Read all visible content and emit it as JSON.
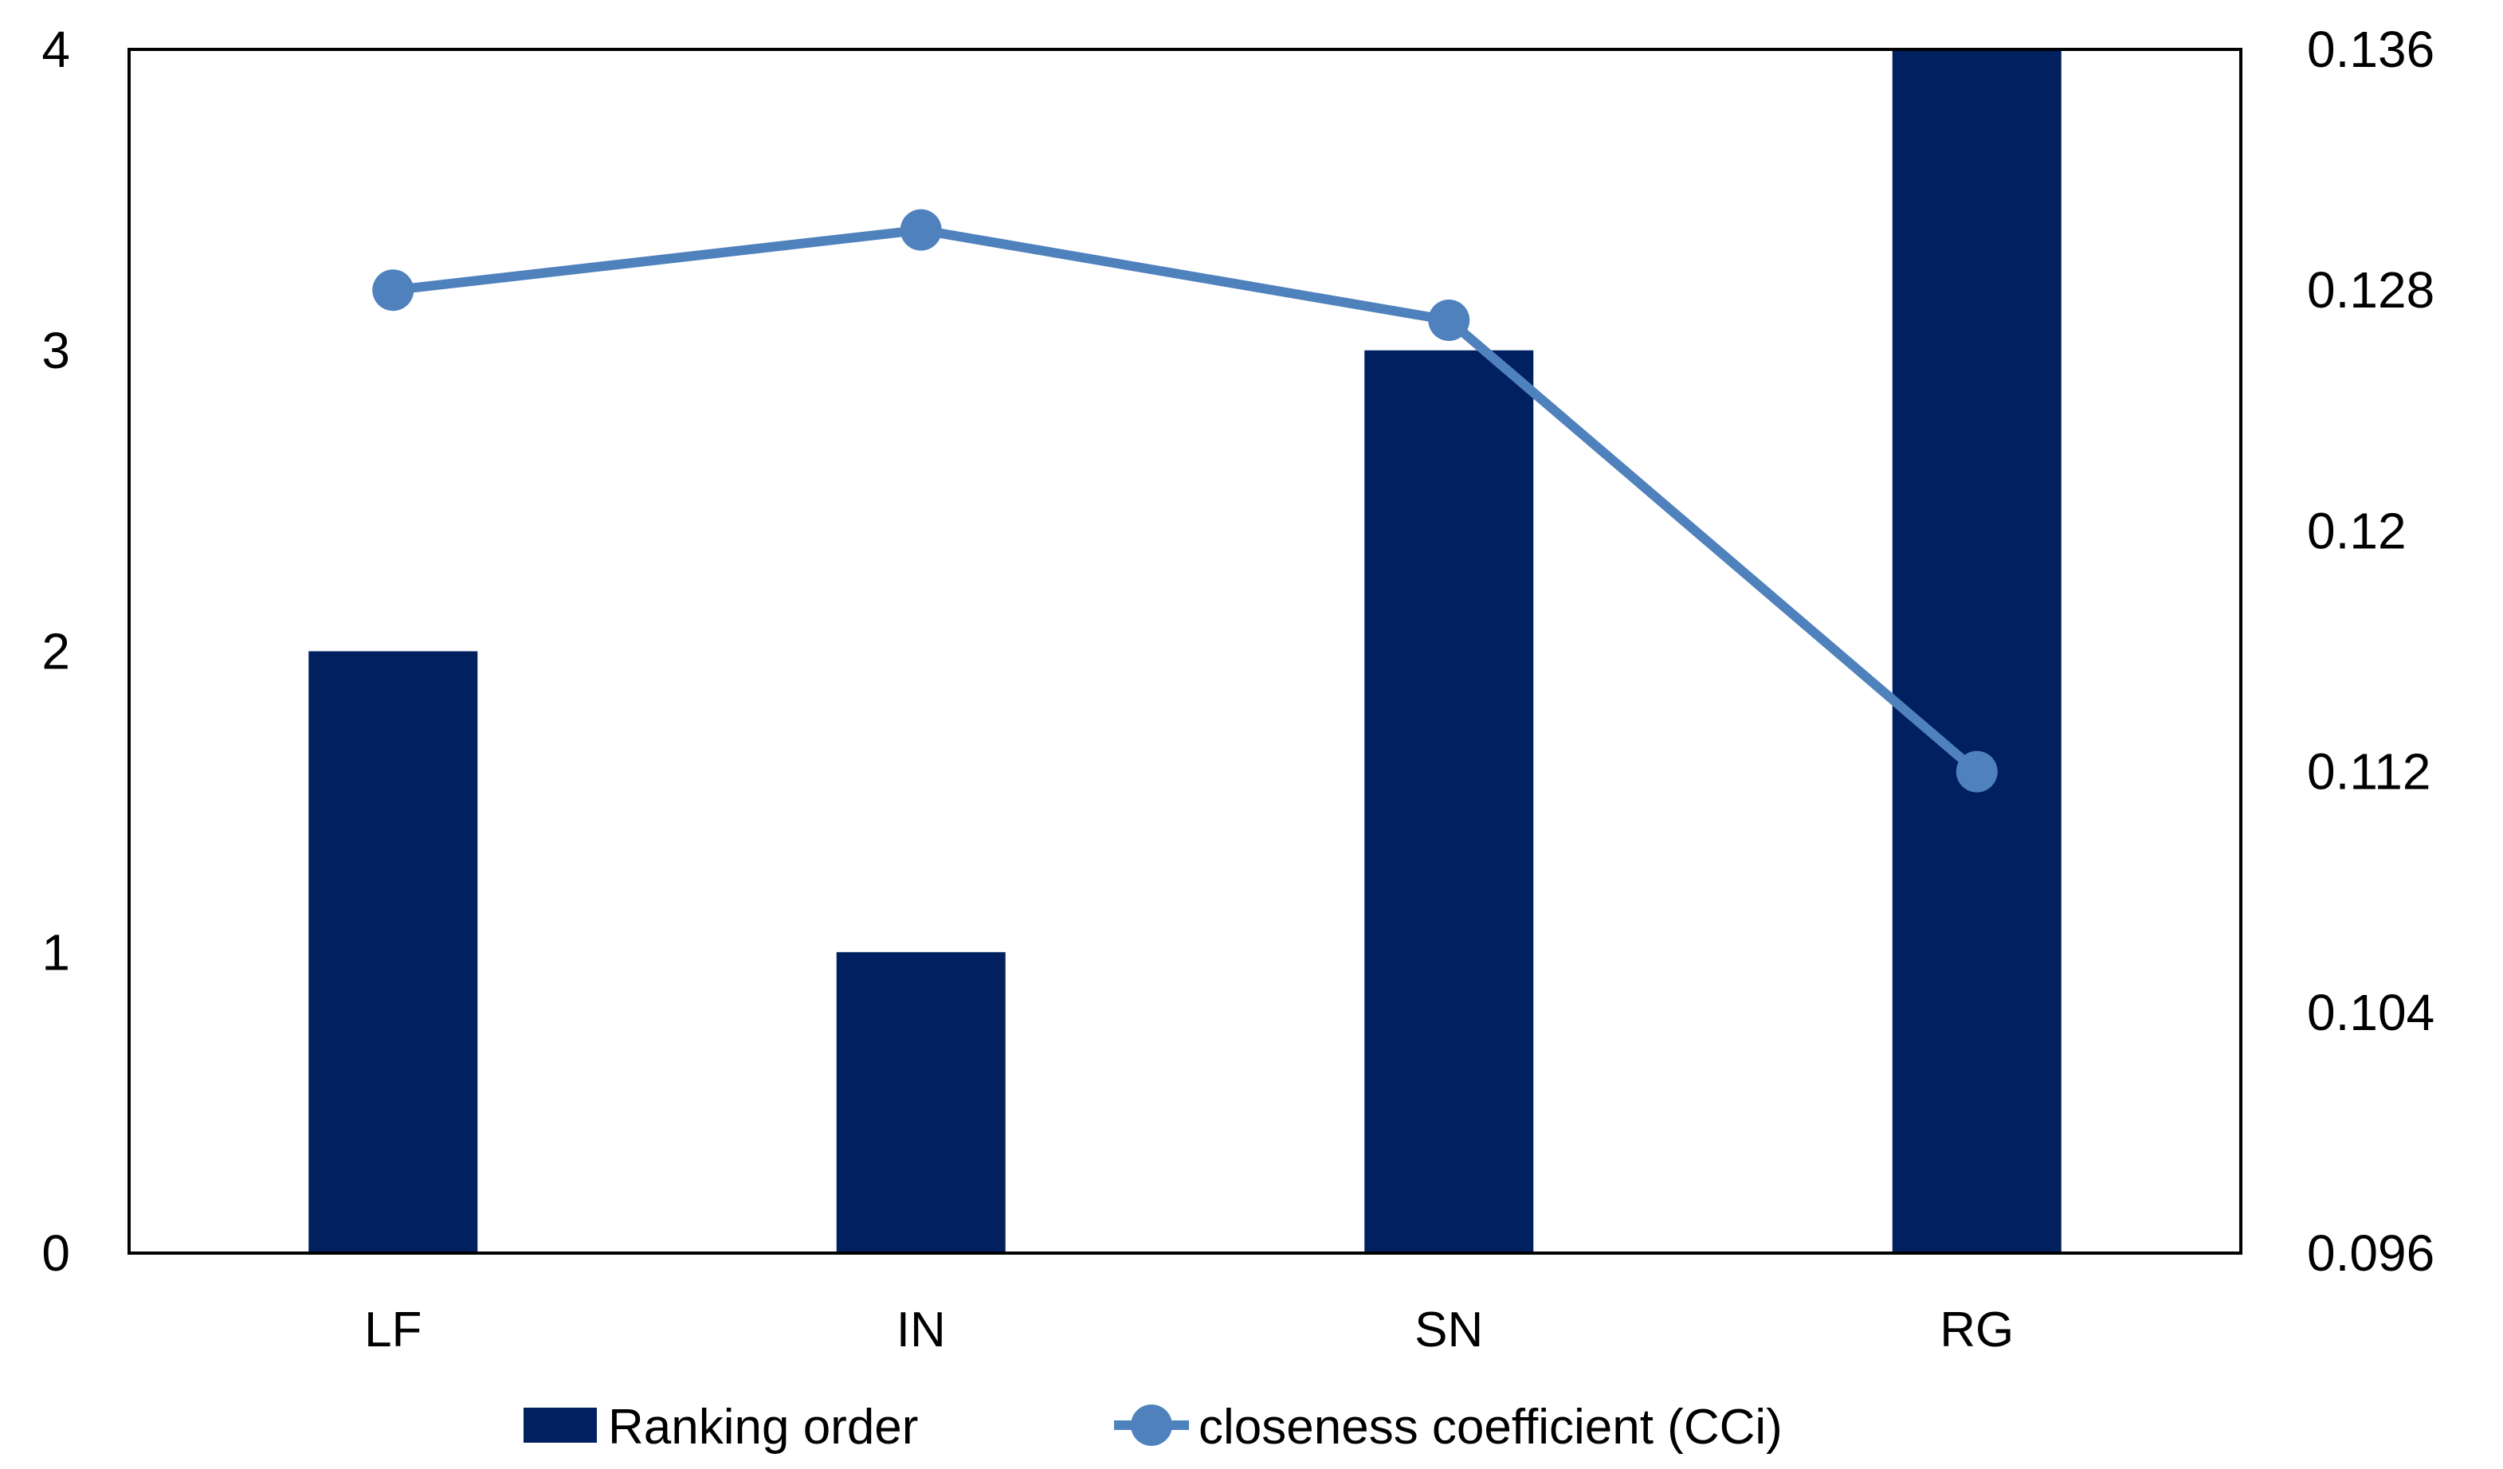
{
  "chart_data": {
    "type": "bar",
    "subtype": "combo-bar-line",
    "title": "",
    "xlabel": "",
    "ylabel": "",
    "grid": false,
    "categories": [
      "LF",
      "IN",
      "SN",
      "RG"
    ],
    "series": [
      {
        "name": "Ranking order",
        "type": "bar",
        "axis": "left",
        "values": [
          2,
          1,
          3,
          4
        ]
      },
      {
        "name": "closeness coefficient (CCi)",
        "type": "line",
        "axis": "right",
        "values": [
          0.128,
          0.13,
          0.127,
          0.112
        ]
      }
    ],
    "left_axis": {
      "min": 0,
      "max": 4,
      "ticks": [
        0,
        1,
        2,
        3,
        4
      ],
      "tick_labels": [
        "0",
        "1",
        "2",
        "3",
        "4"
      ]
    },
    "right_axis": {
      "min": 0.096,
      "max": 0.136,
      "ticks": [
        0.096,
        0.104,
        0.112,
        0.12,
        0.128,
        0.136
      ],
      "tick_labels": [
        "0.096",
        "0.104",
        "0.112",
        "0.12",
        "0.128",
        "0.136"
      ]
    },
    "legend": {
      "position": "bottom",
      "items": [
        "Ranking order",
        "closeness coefficient (CCi)"
      ]
    }
  },
  "colors": {
    "bar": "#002060",
    "line": "#4F81BD",
    "axis_line": "#000000",
    "text": "#000000",
    "background": "#FFFFFF"
  }
}
